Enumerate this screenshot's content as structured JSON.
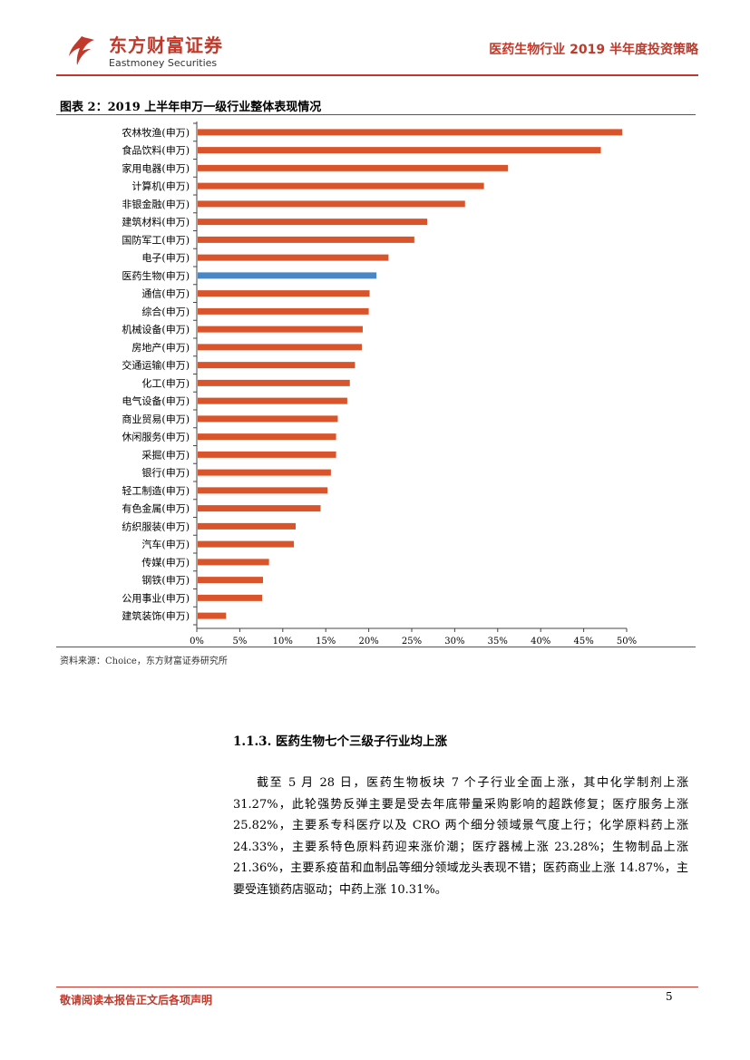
{
  "header": {
    "company_cn": "东方财富证券",
    "company_en": "Eastmoney Securities",
    "report_title": "医药生物行业 2019 半年度投资策略",
    "brand_color": "#c0392b",
    "logo_icon": "eastmoney-logo-icon"
  },
  "figure": {
    "title": "图表 2：2019 上半年申万一级行业整体表现情况",
    "source": "资料来源：Choice，东方财富证券研究所"
  },
  "chart_data": {
    "type": "bar",
    "orientation": "horizontal",
    "categories": [
      "农林牧渔(申万)",
      "食品饮料(申万)",
      "家用电器(申万)",
      "计算机(申万)",
      "非银金融(申万)",
      "建筑材料(申万)",
      "国防军工(申万)",
      "电子(申万)",
      "医药生物(申万)",
      "通信(申万)",
      "综合(申万)",
      "机械设备(申万)",
      "房地产(申万)",
      "交通运输(申万)",
      "化工(申万)",
      "电气设备(申万)",
      "商业贸易(申万)",
      "休闲服务(申万)",
      "采掘(申万)",
      "银行(申万)",
      "轻工制造(申万)",
      "有色金属(申万)",
      "纺织服装(申万)",
      "汽车(申万)",
      "传媒(申万)",
      "钢铁(申万)",
      "公用事业(申万)",
      "建筑装饰(申万)"
    ],
    "values": [
      49.5,
      47.0,
      36.2,
      33.4,
      31.2,
      26.8,
      25.3,
      22.3,
      20.9,
      20.1,
      20.0,
      19.3,
      19.2,
      18.4,
      17.8,
      17.5,
      16.4,
      16.2,
      16.2,
      15.6,
      15.2,
      14.4,
      11.5,
      11.3,
      8.4,
      7.7,
      7.6,
      3.4
    ],
    "xlim": [
      0,
      50
    ],
    "xticks": [
      "0%",
      "5%",
      "10%",
      "15%",
      "20%",
      "25%",
      "30%",
      "35%",
      "40%",
      "45%",
      "50%"
    ],
    "highlight_index": 8,
    "bar_color": "#d9542b",
    "highlight_color": "#4a86c5",
    "grid": false,
    "legend": "none"
  },
  "section": {
    "heading": "1.1.3.  医药生物七个三级子行业均上涨",
    "paragraph": "截至 5 月 28 日，医药生物板块 7 个子行业全面上涨，其中化学制剂上涨 31.27%，此轮强势反弹主要是受去年底带量采购影响的超跌修复；医疗服务上涨 25.82%，主要系专科医疗以及 CRO 两个细分领域景气度上行；化学原料药上涨 24.33%，主要系特色原料药迎来涨价潮；医疗器械上涨 23.28%；生物制品上涨 21.36%，主要系疫苗和血制品等细分领域龙头表现不错；医药商业上涨 14.87%，主要受连锁药店驱动；中药上涨 10.31%。"
  },
  "footer": {
    "disclaimer": "敬请阅读本报告正文后各项声明",
    "page_number": "5"
  }
}
